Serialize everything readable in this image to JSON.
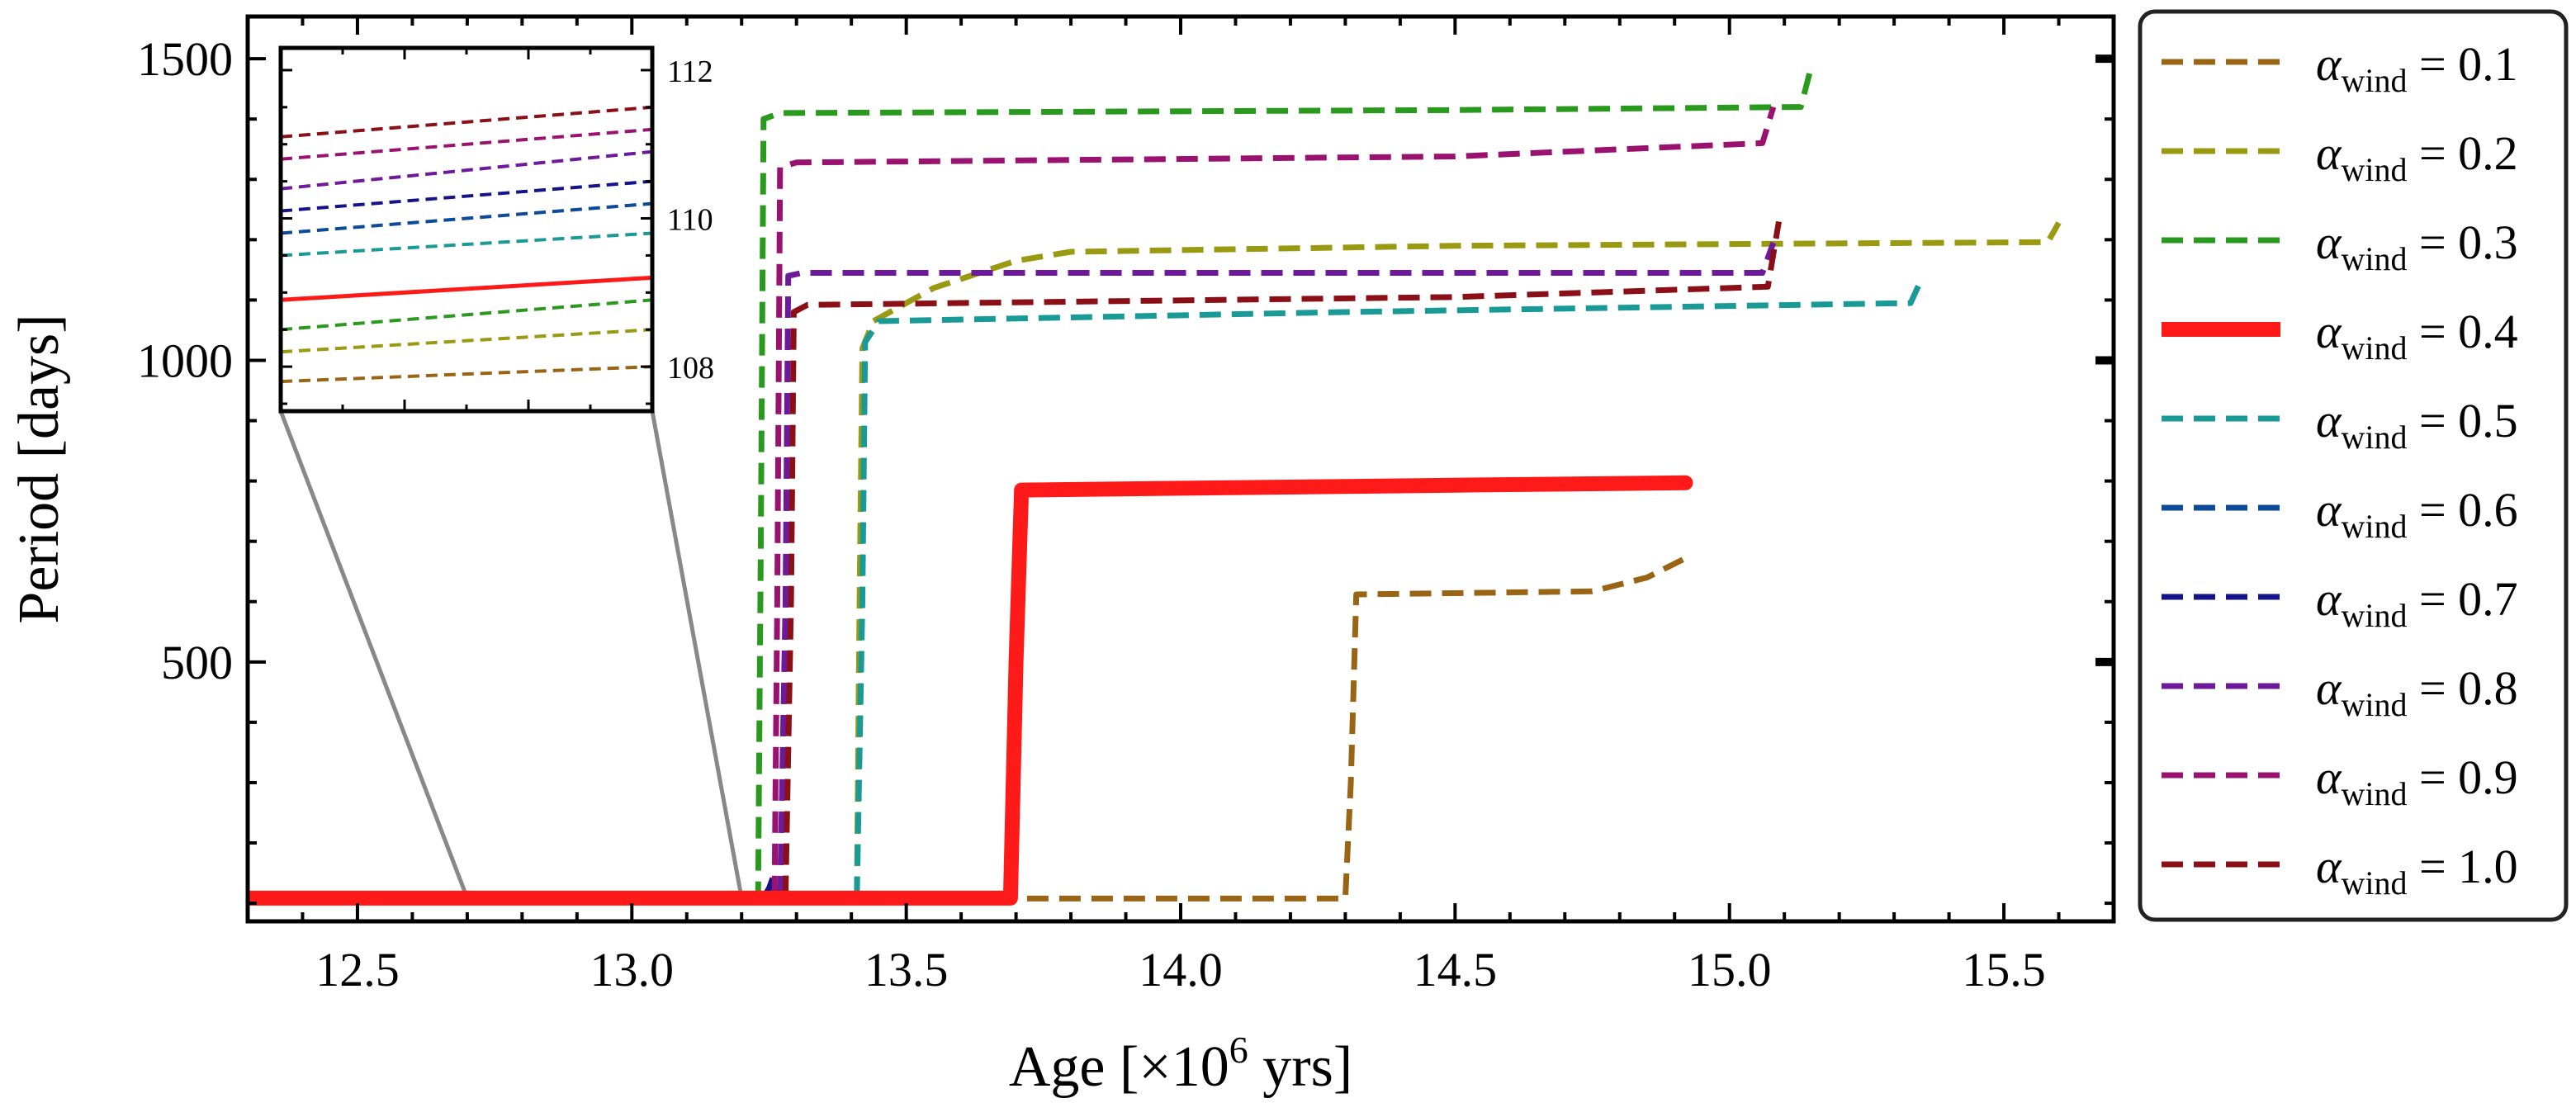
{
  "chart_data": {
    "type": "line",
    "title": "",
    "xlabel_main": "Age [×10",
    "xlabel_exp": "6",
    "xlabel_tail": " yrs]",
    "ylabel": "Period [days]",
    "xlim": [
      12.3,
      15.7
    ],
    "ylim": [
      70,
      1570
    ],
    "x_ticks": [
      12.5,
      13.0,
      13.5,
      14.0,
      14.5,
      15.0,
      15.5
    ],
    "x_tick_labels": [
      "12.5",
      "13.0",
      "13.5",
      "14.0",
      "14.5",
      "15.0",
      "15.5"
    ],
    "y_ticks": [
      500,
      1000,
      1500
    ],
    "y_tick_labels": [
      "500",
      "1000",
      "1500"
    ],
    "legend_position": "outside-right",
    "legend_symbol": "α",
    "legend_sub": "wind",
    "series": [
      {
        "name": "0.1",
        "color": "#996515",
        "dash": true,
        "width": 7,
        "points": [
          [
            13.72,
            107.8
          ],
          [
            14.3,
            107.8
          ],
          [
            14.31,
            300
          ],
          [
            14.32,
            612
          ],
          [
            14.75,
            617
          ],
          [
            14.85,
            640
          ],
          [
            14.92,
            672
          ]
        ]
      },
      {
        "name": "0.2",
        "color": "#9a9a12",
        "dash": true,
        "width": 7,
        "points": [
          [
            13.41,
            108.2
          ],
          [
            13.415,
            600
          ],
          [
            13.42,
            1020
          ],
          [
            13.44,
            1065
          ],
          [
            13.55,
            1120
          ],
          [
            13.7,
            1165
          ],
          [
            13.8,
            1180
          ],
          [
            14.5,
            1190
          ],
          [
            15.58,
            1196
          ],
          [
            15.6,
            1228
          ]
        ]
      },
      {
        "name": "0.3",
        "color": "#2a9a1e",
        "dash": true,
        "width": 7,
        "points": [
          [
            13.22,
            108.5
          ],
          [
            13.23,
            110
          ],
          [
            13.235,
            700
          ],
          [
            13.24,
            1400
          ],
          [
            13.27,
            1410
          ],
          [
            14.5,
            1415
          ],
          [
            15.13,
            1420
          ],
          [
            15.15,
            1490
          ]
        ]
      },
      {
        "name": "0.4",
        "color": "#ff1a1a",
        "dash": false,
        "width": 18,
        "points": [
          [
            12.3,
            108.5
          ],
          [
            13.69,
            108.5
          ],
          [
            13.7,
            500
          ],
          [
            13.71,
            785
          ],
          [
            14.5,
            793
          ],
          [
            14.92,
            797
          ]
        ]
      },
      {
        "name": "0.5",
        "color": "#1a9a96",
        "dash": true,
        "width": 7,
        "points": [
          [
            13.41,
            109
          ],
          [
            13.42,
            600
          ],
          [
            13.425,
            1030
          ],
          [
            13.45,
            1065
          ],
          [
            14.3,
            1080
          ],
          [
            15.33,
            1095
          ],
          [
            15.35,
            1135
          ]
        ]
      },
      {
        "name": "0.6",
        "color": "#0d4a9a",
        "dash": true,
        "width": 7,
        "points": [
          [
            13.24,
            109.2
          ],
          [
            13.25,
            112
          ],
          [
            13.26,
            135
          ],
          [
            13.265,
            130
          ]
        ]
      },
      {
        "name": "0.7",
        "color": "#13138a",
        "dash": true,
        "width": 7,
        "points": [
          [
            13.24,
            109.5
          ],
          [
            13.25,
            125
          ],
          [
            13.258,
            145
          ],
          [
            13.262,
            140
          ]
        ]
      },
      {
        "name": "0.8",
        "color": "#6c1a9a",
        "dash": true,
        "width": 7,
        "points": [
          [
            13.27,
            109.8
          ],
          [
            13.28,
            600
          ],
          [
            13.285,
            1140
          ],
          [
            13.31,
            1145
          ],
          [
            14.5,
            1145
          ],
          [
            15.06,
            1145
          ],
          [
            15.08,
            1195
          ]
        ]
      },
      {
        "name": "0.9",
        "color": "#9a1270",
        "dash": true,
        "width": 7,
        "points": [
          [
            13.26,
            110
          ],
          [
            13.265,
            600
          ],
          [
            13.27,
            1320
          ],
          [
            13.3,
            1328
          ],
          [
            14.5,
            1338
          ],
          [
            15.06,
            1360
          ],
          [
            15.08,
            1420
          ]
        ]
      },
      {
        "name": "1.0",
        "color": "#8a0f16",
        "dash": true,
        "width": 7,
        "points": [
          [
            13.28,
            110.2
          ],
          [
            13.29,
            600
          ],
          [
            13.295,
            1080
          ],
          [
            13.32,
            1092
          ],
          [
            14.5,
            1105
          ],
          [
            15.07,
            1122
          ],
          [
            15.09,
            1230
          ]
        ]
      }
    ],
    "inset": {
      "xlim": [
        12.7,
        13.2
      ],
      "ylim": [
        107.4,
        112.3
      ],
      "y_ticks": [
        108,
        110,
        112
      ],
      "y_tick_labels": [
        "108",
        "110",
        "112"
      ],
      "series": [
        {
          "name": "0.1",
          "y0": 107.8,
          "y1": 108.0
        },
        {
          "name": "0.2",
          "y0": 108.2,
          "y1": 108.5
        },
        {
          "name": "0.3",
          "y0": 108.5,
          "y1": 108.9
        },
        {
          "name": "0.4",
          "y0": 108.9,
          "y1": 109.2
        },
        {
          "name": "0.5",
          "y0": 109.5,
          "y1": 109.8
        },
        {
          "name": "0.6",
          "y0": 109.8,
          "y1": 110.2
        },
        {
          "name": "0.7",
          "y0": 110.1,
          "y1": 110.5
        },
        {
          "name": "0.8",
          "y0": 110.4,
          "y1": 110.9
        },
        {
          "name": "0.9",
          "y0": 110.8,
          "y1": 111.2
        },
        {
          "name": "1.0",
          "y0": 111.1,
          "y1": 111.5
        }
      ]
    },
    "zoom_anchor_x": [
      12.7,
      13.2
    ],
    "zoom_anchor_y": 108.5
  }
}
